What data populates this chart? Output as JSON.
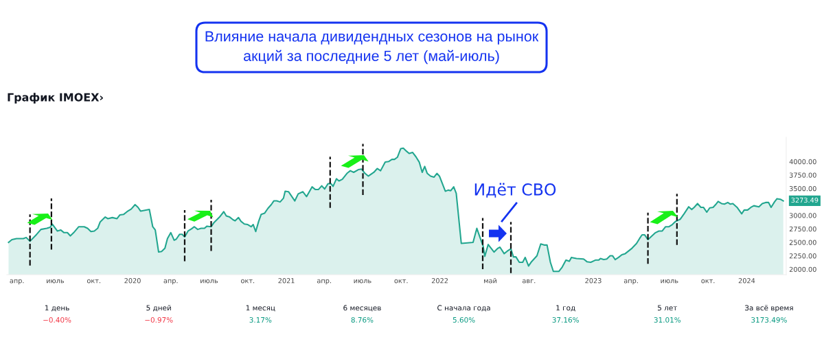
{
  "chart_data": [
    {
      "type": "area",
      "title": "Влияние начала дивидендных сезонов на рынок\nакций за последние 5 лет (май-июль)",
      "subtitle": "График IMOEX›",
      "x": [
        "2019-03-12",
        "2019-03-20",
        "2019-03-31",
        "2019-04-16",
        "2019-04-23",
        "2019-05-02",
        "2019-05-18",
        "2019-05-28",
        "2019-06-11",
        "2019-06-19",
        "2019-06-24",
        "2019-07-06",
        "2019-07-14",
        "2019-07-22",
        "2019-07-30",
        "2019-08-06",
        "2019-08-14",
        "2019-08-26",
        "2019-09-08",
        "2019-09-16",
        "2019-09-24",
        "2019-10-02",
        "2019-10-10",
        "2019-10-16",
        "2019-10-28",
        "2019-11-03",
        "2019-11-14",
        "2019-11-25",
        "2019-12-02",
        "2019-12-11",
        "2019-12-19",
        "2019-12-29",
        "2020-01-07",
        "2020-01-14",
        "2020-01-20",
        "2020-02-10",
        "2020-02-18",
        "2020-02-24",
        "2020-03-03",
        "2020-03-10",
        "2020-03-18",
        "2020-03-24",
        "2020-04-01",
        "2020-04-09",
        "2020-04-14",
        "2020-04-22",
        "2020-04-28",
        "2020-05-04",
        "2020-05-12",
        "2020-05-20",
        "2020-05-27",
        "2020-06-04",
        "2020-06-12",
        "2020-06-20",
        "2020-06-26",
        "2020-07-06",
        "2020-07-13",
        "2020-07-26",
        "2020-08-05",
        "2020-08-11",
        "2020-08-19",
        "2020-08-27",
        "2020-09-01",
        "2020-09-09",
        "2020-09-15",
        "2020-09-23",
        "2020-10-01",
        "2020-10-09",
        "2020-10-14",
        "2020-10-20",
        "2020-10-27",
        "2020-11-02",
        "2020-11-10",
        "2020-11-18",
        "2020-11-26",
        "2020-12-02",
        "2020-12-09",
        "2020-12-17",
        "2020-12-25",
        "2020-12-29",
        "2021-01-06",
        "2021-01-21",
        "2021-01-29",
        "2021-02-09",
        "2021-02-18",
        "2021-03-03",
        "2021-03-11",
        "2021-03-18",
        "2021-03-26",
        "2021-04-02",
        "2021-04-10",
        "2021-04-17",
        "2021-04-22",
        "2021-04-30",
        "2021-05-06",
        "2021-05-14",
        "2021-05-25",
        "2021-06-02",
        "2021-06-10",
        "2021-06-21",
        "2021-06-29",
        "2021-07-07",
        "2021-07-15",
        "2021-07-28",
        "2021-08-05",
        "2021-08-13",
        "2021-08-24",
        "2021-09-01",
        "2021-09-09",
        "2021-09-15",
        "2021-09-22",
        "2021-09-30",
        "2021-10-06",
        "2021-10-14",
        "2021-10-20",
        "2021-10-28",
        "2021-11-05",
        "2021-11-13",
        "2021-11-20",
        "2021-11-26",
        "2021-12-02",
        "2021-12-10",
        "2021-12-18",
        "2021-12-25",
        "2021-12-31",
        "2022-01-14",
        "2022-01-21",
        "2022-01-27",
        "2022-02-03",
        "2022-02-09",
        "2022-02-21",
        "2022-03-21",
        "2022-03-30",
        "2022-04-07",
        "2022-04-14",
        "2022-04-18",
        "2022-04-26",
        "2022-05-03",
        "2022-05-10",
        "2022-05-19",
        "2022-05-24",
        "2022-06-03",
        "2022-06-11",
        "2022-06-19",
        "2022-06-25",
        "2022-07-01",
        "2022-07-09",
        "2022-07-17",
        "2022-07-23",
        "2022-07-31",
        "2022-08-07",
        "2022-08-20",
        "2022-08-29",
        "2022-09-06",
        "2022-09-13",
        "2022-09-21",
        "2022-09-28",
        "2022-10-11",
        "2022-10-19",
        "2022-10-28",
        "2022-11-05",
        "2022-11-10",
        "2022-11-22",
        "2022-12-09",
        "2022-12-17",
        "2022-12-26",
        "2023-01-06",
        "2023-01-14",
        "2023-01-18",
        "2023-01-26",
        "2023-02-02",
        "2023-02-10",
        "2023-02-16",
        "2023-02-22",
        "2023-03-02",
        "2023-03-10",
        "2023-03-18",
        "2023-04-03",
        "2023-04-14",
        "2023-04-21",
        "2023-04-27",
        "2023-05-03",
        "2023-05-11",
        "2023-05-18",
        "2023-05-29",
        "2023-06-06",
        "2023-06-14",
        "2023-06-22",
        "2023-06-30",
        "2023-07-08",
        "2023-07-16",
        "2023-07-27",
        "2023-08-05",
        "2023-08-16",
        "2023-08-23",
        "2023-08-29",
        "2023-09-06",
        "2023-09-14",
        "2023-09-20",
        "2023-09-28",
        "2023-10-05",
        "2023-10-13",
        "2023-10-19",
        "2023-10-25",
        "2023-11-02",
        "2023-11-09",
        "2023-11-17",
        "2023-11-23",
        "2023-11-29",
        "2023-12-09",
        "2023-12-20",
        "2023-12-26",
        "2024-01-03",
        "2024-01-11",
        "2024-01-18",
        "2024-01-30",
        "2024-02-07",
        "2024-02-15",
        "2024-02-22",
        "2024-02-28",
        "2024-03-07",
        "2024-03-13",
        "2024-03-21",
        "2024-03-28"
      ],
      "series": [
        {
          "color": "#22a68f",
          "values": [
            2500,
            2550,
            2570,
            2570,
            2590,
            2520,
            2650,
            2740,
            2760,
            2780,
            2840,
            2710,
            2730,
            2680,
            2680,
            2620,
            2680,
            2790,
            2790,
            2760,
            2700,
            2710,
            2760,
            2880,
            2970,
            2940,
            2960,
            2940,
            3010,
            3020,
            3070,
            3120,
            3200,
            3150,
            3080,
            3110,
            2790,
            2730,
            2320,
            2330,
            2390,
            2570,
            2680,
            2540,
            2560,
            2650,
            2650,
            2600,
            2710,
            2750,
            2790,
            2740,
            2760,
            2760,
            2800,
            2790,
            2870,
            2970,
            3070,
            2990,
            2970,
            2920,
            2900,
            2960,
            2890,
            2840,
            2830,
            2790,
            2830,
            2700,
            2890,
            3020,
            3040,
            3130,
            3200,
            3270,
            3270,
            3250,
            3320,
            3450,
            3440,
            3270,
            3400,
            3440,
            3350,
            3530,
            3480,
            3480,
            3550,
            3490,
            3590,
            3590,
            3540,
            3680,
            3640,
            3670,
            3780,
            3830,
            3800,
            3850,
            3860,
            3780,
            3730,
            3800,
            3870,
            3830,
            3990,
            4000,
            4040,
            4040,
            4080,
            4240,
            4250,
            4190,
            4150,
            4170,
            4090,
            3990,
            3800,
            3910,
            3780,
            3730,
            3710,
            3780,
            3730,
            3450,
            3470,
            3460,
            3530,
            3410,
            2480,
            2500,
            2760,
            2580,
            2430,
            2240,
            2460,
            2390,
            2320,
            2390,
            2410,
            2290,
            2340,
            2380,
            2230,
            2230,
            2130,
            2130,
            2220,
            2060,
            2140,
            2250,
            2470,
            2450,
            2450,
            2130,
            1960,
            1960,
            2040,
            2170,
            2150,
            2220,
            2200,
            2190,
            2140,
            2130,
            2170,
            2170,
            2200,
            2180,
            2190,
            2250,
            2250,
            2180,
            2220,
            2270,
            2290,
            2390,
            2480,
            2570,
            2640,
            2640,
            2550,
            2600,
            2680,
            2710,
            2710,
            2790,
            2790,
            2830,
            2890,
            2930,
            3030,
            3160,
            3110,
            3150,
            3220,
            3150,
            3150,
            3060,
            3140,
            3150,
            3200,
            3260,
            3220,
            3210,
            3240,
            3210,
            3220,
            3150,
            3030,
            3100,
            3100,
            3150,
            3180,
            3160,
            3220,
            3240,
            3240,
            3150,
            3250,
            3310,
            3300,
            3270
          ]
        }
      ],
      "xlim": [
        "2019-03-08",
        "2024-04-04"
      ],
      "xticks": [
        {
          "value": "2019-04-01",
          "label": "апр."
        },
        {
          "value": "2019-07-01",
          "label": "июль"
        },
        {
          "value": "2019-10-01",
          "label": "окт."
        },
        {
          "value": "2020-01-01",
          "label": "2020"
        },
        {
          "value": "2020-04-01",
          "label": "апр."
        },
        {
          "value": "2020-07-01",
          "label": "июль"
        },
        {
          "value": "2020-10-01",
          "label": "окт."
        },
        {
          "value": "2021-01-01",
          "label": "2021"
        },
        {
          "value": "2021-04-01",
          "label": "апр."
        },
        {
          "value": "2021-07-01",
          "label": "июль"
        },
        {
          "value": "2021-10-01",
          "label": "окт."
        },
        {
          "value": "2022-01-01",
          "label": "2022"
        },
        {
          "value": "2022-05-01",
          "label": "май"
        },
        {
          "value": "2022-08-01",
          "label": "авг."
        },
        {
          "value": "2023-01-01",
          "label": "2023"
        },
        {
          "value": "2023-04-01",
          "label": "апр."
        },
        {
          "value": "2023-07-01",
          "label": "июль"
        },
        {
          "value": "2023-10-01",
          "label": "окт."
        },
        {
          "value": "2024-01-01",
          "label": "2024"
        }
      ],
      "ylim": [
        1900,
        4450
      ],
      "yticks": [
        {
          "value": 2000,
          "label": "2000.00"
        },
        {
          "value": 2250,
          "label": "2250.00"
        },
        {
          "value": 2500,
          "label": "2500.00"
        },
        {
          "value": 2750,
          "label": "2750.00"
        },
        {
          "value": 3000,
          "label": "3000.00"
        },
        {
          "value": 3500,
          "label": "3500.00"
        },
        {
          "value": 3750,
          "label": "3750.00"
        },
        {
          "value": 4000,
          "label": "4000.00"
        }
      ],
      "ref_lines": [
        {
          "axis": "x",
          "value": "2019-05-02",
          "color": "#111111",
          "line_style": "dashed"
        },
        {
          "axis": "x",
          "value": "2019-06-22",
          "color": "#111111",
          "line_style": "dashed"
        },
        {
          "axis": "x",
          "value": "2020-05-04",
          "color": "#111111",
          "line_style": "dashed"
        },
        {
          "axis": "x",
          "value": "2020-07-06",
          "color": "#111111",
          "line_style": "dashed"
        },
        {
          "axis": "x",
          "value": "2021-04-15",
          "color": "#111111",
          "line_style": "dashed"
        },
        {
          "axis": "x",
          "value": "2021-07-02",
          "color": "#111111",
          "line_style": "dashed"
        },
        {
          "axis": "x",
          "value": "2022-04-13",
          "color": "#111111",
          "line_style": "dashed"
        },
        {
          "axis": "x",
          "value": "2022-06-19",
          "color": "#111111",
          "line_style": "dashed"
        },
        {
          "axis": "x",
          "value": "2023-05-11",
          "color": "#111111",
          "line_style": "dashed"
        },
        {
          "axis": "x",
          "value": "2023-07-19",
          "color": "#111111",
          "line_style": "dashed"
        }
      ],
      "annotations": [
        "Идёт СВО",
        {
          "text": "3273.49",
          "x": "2024-03-28",
          "y": 3273.49
        }
      ],
      "grid": false,
      "marker": "none",
      "line_style": "solid"
    },
    {
      "type": "other",
      "categories": [
        "1 день",
        "5 дней",
        "1 месяц",
        "6 месяцев",
        "С начала года",
        "1 год",
        "5 лет",
        "За всё время"
      ],
      "values": [
        -0.4,
        -0.97,
        3.17,
        8.76,
        5.6,
        37.16,
        31.01,
        3173.49
      ],
      "value_labels": [
        "−0.40%",
        "−0.97%",
        "3.17%",
        "8.76%",
        "5.60%",
        "37.16%",
        "31.01%",
        "3173.49%"
      ]
    }
  ]
}
